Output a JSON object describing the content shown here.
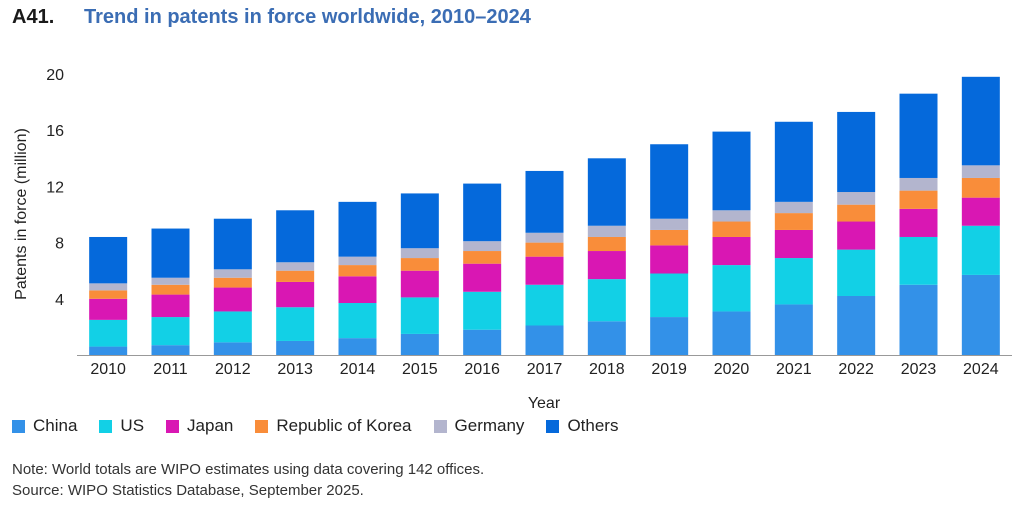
{
  "figure": {
    "id": "A41.",
    "title": "Trend in patents in force worldwide, 2010–2024"
  },
  "notes": {
    "note": "Note: World totals are WIPO estimates using data covering 142 offices.",
    "source": "Source: WIPO Statistics Database, September 2025."
  },
  "chart_data": {
    "type": "bar",
    "stacked": true,
    "xlabel": "Year",
    "ylabel": "Patents in force (million)",
    "ylim": [
      0,
      20
    ],
    "yticks": [
      "4",
      "8",
      "12",
      "16",
      "20"
    ],
    "grid": false,
    "legend_position": "bottom-left",
    "categories": [
      "2010",
      "2011",
      "2012",
      "2013",
      "2014",
      "2015",
      "2016",
      "2017",
      "2018",
      "2019",
      "2020",
      "2021",
      "2022",
      "2023",
      "2024"
    ],
    "series": [
      {
        "name": "China",
        "color": "#3391e8",
        "values": [
          0.6,
          0.7,
          0.9,
          1.0,
          1.2,
          1.5,
          1.8,
          2.1,
          2.4,
          2.7,
          3.1,
          3.6,
          4.2,
          5.0,
          5.7
        ]
      },
      {
        "name": "US",
        "color": "#12d0e6",
        "values": [
          1.9,
          2.0,
          2.2,
          2.4,
          2.5,
          2.6,
          2.7,
          2.9,
          3.0,
          3.1,
          3.3,
          3.3,
          3.3,
          3.4,
          3.5
        ]
      },
      {
        "name": "Japan",
        "color": "#d917b3",
        "values": [
          1.5,
          1.6,
          1.7,
          1.8,
          1.9,
          1.9,
          2.0,
          2.0,
          2.0,
          2.0,
          2.0,
          2.0,
          2.0,
          2.0,
          2.0
        ]
      },
      {
        "name": "Republic of Korea",
        "color": "#f98d3a",
        "values": [
          0.6,
          0.7,
          0.7,
          0.8,
          0.8,
          0.9,
          0.9,
          1.0,
          1.0,
          1.1,
          1.1,
          1.2,
          1.2,
          1.3,
          1.4
        ]
      },
      {
        "name": "Germany",
        "color": "#b3b5ce",
        "values": [
          0.5,
          0.5,
          0.6,
          0.6,
          0.6,
          0.7,
          0.7,
          0.7,
          0.8,
          0.8,
          0.8,
          0.8,
          0.9,
          0.9,
          0.9
        ]
      },
      {
        "name": "Others",
        "color": "#0569db",
        "values": [
          3.3,
          3.5,
          3.6,
          3.7,
          3.9,
          3.9,
          4.1,
          4.4,
          4.8,
          5.3,
          5.6,
          5.7,
          5.7,
          6.0,
          6.3
        ]
      }
    ]
  }
}
